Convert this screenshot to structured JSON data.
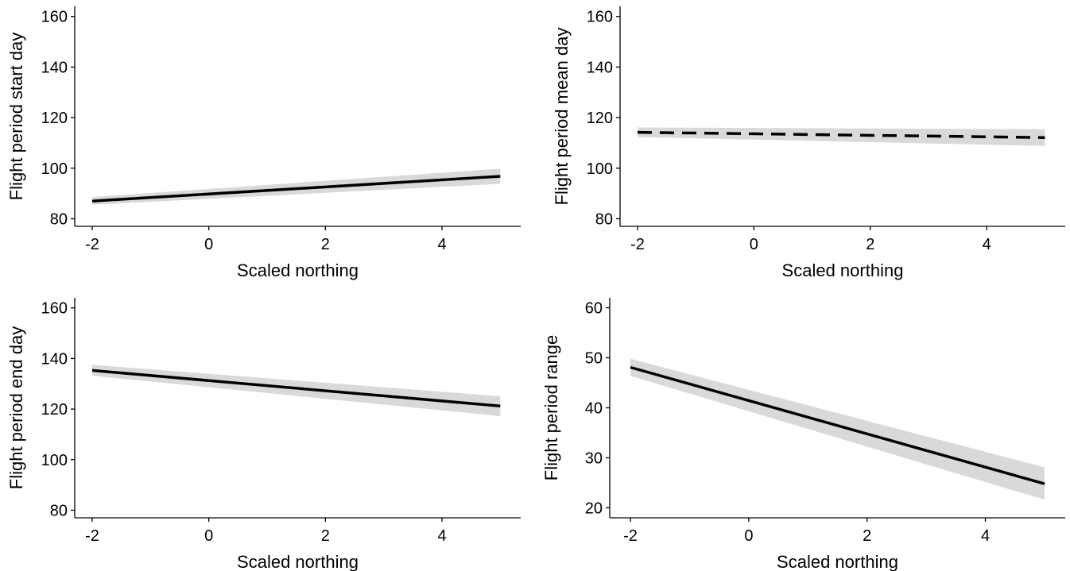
{
  "colors": {
    "line": "#000000",
    "ribbon": "#d9d9d9",
    "axis": "#000000",
    "background": "#ffffff"
  },
  "chart_data": [
    {
      "type": "line",
      "title": "",
      "xlabel": "Scaled northing",
      "ylabel": "Flight period start day",
      "xlim": [
        -2.3,
        5.35
      ],
      "ylim": [
        77,
        164
      ],
      "x_ticks": [
        -2,
        0,
        2,
        4
      ],
      "y_ticks": [
        80,
        100,
        120,
        140,
        160
      ],
      "grid": false,
      "line_style": "solid",
      "series": [
        {
          "x": [
            -2,
            5
          ],
          "y": [
            87,
            96.8
          ],
          "ci_lower": [
            85.5,
            93.8
          ],
          "ci_upper": [
            88.6,
            99.8
          ]
        }
      ]
    },
    {
      "type": "line",
      "title": "",
      "xlabel": "Scaled northing",
      "ylabel": "Flight period mean day",
      "xlim": [
        -2.3,
        5.35
      ],
      "ylim": [
        77,
        164
      ],
      "x_ticks": [
        -2,
        0,
        2,
        4
      ],
      "y_ticks": [
        80,
        100,
        120,
        140,
        160
      ],
      "grid": false,
      "line_style": "dashed",
      "series": [
        {
          "x": [
            -2,
            5
          ],
          "y": [
            114.2,
            112.1
          ],
          "ci_lower": [
            112.3,
            108.8
          ],
          "ci_upper": [
            116.1,
            115.4
          ]
        }
      ]
    },
    {
      "type": "line",
      "title": "",
      "xlabel": "Scaled northing",
      "ylabel": "Flight period end day",
      "xlim": [
        -2.3,
        5.35
      ],
      "ylim": [
        77,
        164
      ],
      "x_ticks": [
        -2,
        0,
        2,
        4
      ],
      "y_ticks": [
        80,
        100,
        120,
        140,
        160
      ],
      "grid": false,
      "line_style": "solid",
      "series": [
        {
          "x": [
            -2,
            5
          ],
          "y": [
            135.3,
            121.2
          ],
          "ci_lower": [
            133.2,
            117.2
          ],
          "ci_upper": [
            137.5,
            125.1
          ]
        }
      ]
    },
    {
      "type": "line",
      "title": "",
      "xlabel": "Scaled northing",
      "ylabel": "Flight period range",
      "xlim": [
        -2.35,
        5.35
      ],
      "ylim": [
        18,
        62
      ],
      "x_ticks": [
        -2,
        0,
        2,
        4
      ],
      "y_ticks": [
        20,
        30,
        40,
        50,
        60
      ],
      "grid": false,
      "line_style": "solid",
      "series": [
        {
          "x": [
            -2,
            5
          ],
          "y": [
            48.1,
            24.8
          ],
          "ci_lower": [
            46.4,
            21.6
          ],
          "ci_upper": [
            49.8,
            28.1
          ]
        }
      ]
    }
  ]
}
